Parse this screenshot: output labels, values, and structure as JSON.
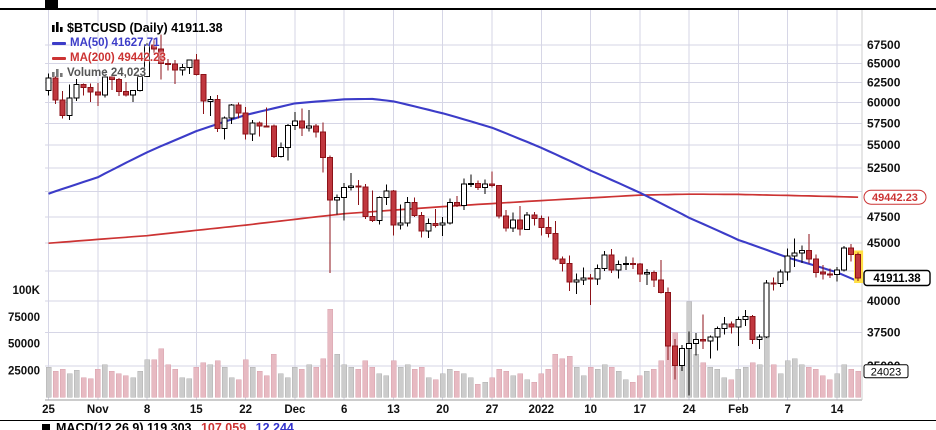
{
  "legend": {
    "title": "$BTCUSD (Daily) 41911.38",
    "ma50": "MA(50) 41627.71",
    "ma200": "MA(200) 49442.23",
    "volume": "Volume 24,023"
  },
  "footer": {
    "label": "MACD(12,26,9) 119.303,",
    "signal": "107.059,",
    "hist": "12.244"
  },
  "colors": {
    "grid": "#d6d6e6",
    "axis_line": "#999999",
    "axis_text": "#111111",
    "ma50": "#3c3cc8",
    "ma200": "#cc3333",
    "candle_down_fill": "#c0373e",
    "candle_down_stroke": "#8c1218",
    "candle_up_fill": "#ffffff",
    "candle_up_stroke": "#000000",
    "vol_down_fill": "#e7bac2",
    "vol_down_stroke": "#d8a2ad",
    "vol_up_fill": "#cccccc",
    "vol_up_stroke": "#b0b0b0",
    "last_highlight": "#ffdf45",
    "badge_last": "#000000"
  },
  "chart_data": {
    "type": "candlestick",
    "symbol": "$BTCUSD",
    "timeframe": "Daily",
    "title": "$BTCUSD (Daily)",
    "last_price": 41911.38,
    "ma50_value": 41627.71,
    "ma200_value": 49442.23,
    "last_volume": 24023,
    "scale": "log",
    "legend_position": "top-left",
    "price_axis": {
      "labels": [
        67500,
        65000,
        62500,
        60000,
        57500,
        55000,
        52500,
        47500,
        45000,
        40000,
        37500,
        35000
      ],
      "gridlines": [
        67500,
        65000,
        62500,
        60000,
        57500,
        55000,
        52500,
        50000,
        47500,
        45000,
        42500,
        40000,
        37500,
        35000
      ],
      "visible_range": [
        33000,
        69000
      ]
    },
    "volume_axis": {
      "labels": [
        [
          "100K",
          100000
        ],
        [
          "75000",
          75000
        ],
        [
          "50000",
          50000
        ],
        [
          "25000",
          25000
        ]
      ],
      "max": 110000
    },
    "x_ticks": [
      [
        "25",
        0
      ],
      [
        "Nov",
        7
      ],
      [
        "8",
        14
      ],
      [
        "15",
        21
      ],
      [
        "22",
        28
      ],
      [
        "Dec",
        35
      ],
      [
        "6",
        42
      ],
      [
        "13",
        49
      ],
      [
        "20",
        56
      ],
      [
        "27",
        63
      ],
      [
        "2022",
        70
      ],
      [
        "10",
        77
      ],
      [
        "17",
        84
      ],
      [
        "24",
        91
      ],
      [
        "Feb",
        98
      ],
      [
        "7",
        105
      ],
      [
        "14",
        112
      ]
    ],
    "bold_ticks": [
      "Nov",
      "Dec",
      "2022",
      "Feb"
    ],
    "candles": [
      [
        61500,
        63700,
        60900,
        63078,
        28000
      ],
      [
        63078,
        63300,
        59850,
        60328,
        24000
      ],
      [
        60328,
        61450,
        58100,
        58413,
        26000
      ],
      [
        58413,
        62250,
        57900,
        60575,
        22000
      ],
      [
        60575,
        62980,
        60200,
        62253,
        25000
      ],
      [
        62253,
        62360,
        60850,
        61859,
        18000
      ],
      [
        61859,
        62400,
        60050,
        61320,
        17000
      ],
      [
        61320,
        62450,
        59600,
        60949,
        26000
      ],
      [
        60949,
        64270,
        60650,
        63219,
        30000
      ],
      [
        63219,
        63550,
        61550,
        62896,
        24000
      ],
      [
        62896,
        63100,
        60800,
        61395,
        22000
      ],
      [
        61395,
        62550,
        60750,
        60937,
        20000
      ],
      [
        60937,
        61560,
        60100,
        61470,
        18000
      ],
      [
        61470,
        63290,
        61350,
        63273,
        24000
      ],
      [
        63273,
        67790,
        63270,
        67528,
        35000
      ],
      [
        67528,
        68500,
        66350,
        66947,
        35000
      ],
      [
        66947,
        68990,
        62900,
        64995,
        45000
      ],
      [
        64995,
        65590,
        64100,
        64949,
        30000
      ],
      [
        64949,
        65450,
        62300,
        64155,
        26000
      ],
      [
        64155,
        64900,
        63400,
        64469,
        18000
      ],
      [
        64469,
        65500,
        63600,
        65466,
        17000
      ],
      [
        65466,
        66280,
        63400,
        63557,
        28000
      ],
      [
        63557,
        63600,
        58600,
        60161,
        32000
      ],
      [
        60161,
        60800,
        58400,
        60368,
        30000
      ],
      [
        60368,
        60950,
        56500,
        56891,
        34000
      ],
      [
        56891,
        58300,
        55650,
        58119,
        28000
      ],
      [
        58119,
        59850,
        57450,
        59697,
        18000
      ],
      [
        59697,
        60000,
        58050,
        58730,
        16000
      ],
      [
        58730,
        59450,
        55650,
        56289,
        35000
      ],
      [
        56289,
        57880,
        55450,
        57569,
        28000
      ],
      [
        57569,
        57750,
        55950,
        57187,
        24000
      ],
      [
        57187,
        59400,
        57000,
        57165,
        20000
      ],
      [
        57165,
        57350,
        53550,
        53726,
        40000
      ],
      [
        53726,
        55300,
        53650,
        54721,
        22000
      ],
      [
        54721,
        57450,
        53300,
        57274,
        18000
      ],
      [
        57274,
        58850,
        56750,
        57776,
        28000
      ],
      [
        57776,
        59250,
        56050,
        56950,
        26000
      ],
      [
        56950,
        59100,
        56550,
        57184,
        30000
      ],
      [
        57184,
        57400,
        55850,
        56508,
        28000
      ],
      [
        56508,
        57600,
        52000,
        53601,
        36000
      ],
      [
        53601,
        53860,
        42330,
        49152,
        82000
      ],
      [
        49152,
        49700,
        47700,
        49396,
        40000
      ],
      [
        49396,
        50890,
        47150,
        50441,
        30000
      ],
      [
        50441,
        51950,
        50100,
        50588,
        28000
      ],
      [
        50588,
        51200,
        48650,
        50471,
        26000
      ],
      [
        50471,
        50800,
        47300,
        47545,
        34000
      ],
      [
        47545,
        50100,
        47000,
        47140,
        28000
      ],
      [
        47140,
        49500,
        46750,
        49389,
        22000
      ],
      [
        49389,
        50750,
        48650,
        50053,
        20000
      ],
      [
        50053,
        50200,
        45700,
        46702,
        34000
      ],
      [
        46702,
        48700,
        46300,
        46880,
        28000
      ],
      [
        46880,
        49450,
        46550,
        48896,
        30000
      ],
      [
        48896,
        49400,
        47500,
        47632,
        26000
      ],
      [
        47632,
        47950,
        45550,
        46131,
        28000
      ],
      [
        46131,
        47350,
        45500,
        46834,
        18000
      ],
      [
        46834,
        48250,
        46450,
        46681,
        16000
      ],
      [
        46681,
        47500,
        45650,
        46914,
        22000
      ],
      [
        46914,
        49300,
        46750,
        48889,
        26000
      ],
      [
        48889,
        49550,
        48450,
        48588,
        24000
      ],
      [
        48588,
        51350,
        48150,
        50784,
        22000
      ],
      [
        50784,
        51800,
        50500,
        50822,
        18000
      ],
      [
        50822,
        51150,
        50200,
        50429,
        12000
      ],
      [
        50429,
        51250,
        49750,
        50809,
        14000
      ],
      [
        50809,
        52100,
        50450,
        50640,
        18000
      ],
      [
        50640,
        50700,
        47350,
        47588,
        26000
      ],
      [
        47588,
        48150,
        46100,
        46444,
        24000
      ],
      [
        46444,
        47900,
        46050,
        47178,
        20000
      ],
      [
        47178,
        48550,
        45700,
        46306,
        22000
      ],
      [
        46306,
        47950,
        46250,
        47687,
        16000
      ],
      [
        47687,
        47990,
        46650,
        47345,
        14000
      ],
      [
        47345,
        47600,
        45700,
        46458,
        22000
      ],
      [
        46458,
        47550,
        45550,
        45897,
        26000
      ],
      [
        45897,
        47070,
        43450,
        43569,
        40000
      ],
      [
        43569,
        43800,
        42450,
        43160,
        36000
      ],
      [
        43160,
        43900,
        40800,
        41557,
        38000
      ],
      [
        41557,
        42300,
        40550,
        41733,
        28000
      ],
      [
        41733,
        42800,
        41300,
        41911,
        20000
      ],
      [
        41911,
        42250,
        39650,
        41821,
        28000
      ],
      [
        41821,
        43100,
        41300,
        42735,
        26000
      ],
      [
        42735,
        44300,
        42500,
        43949,
        30000
      ],
      [
        43949,
        44450,
        42350,
        42591,
        28000
      ],
      [
        42591,
        43450,
        41850,
        43099,
        24000
      ],
      [
        43099,
        43800,
        42600,
        43177,
        16000
      ],
      [
        43177,
        43700,
        42700,
        43113,
        14000
      ],
      [
        43113,
        43200,
        41550,
        42250,
        20000
      ],
      [
        42250,
        42700,
        41300,
        42375,
        24000
      ],
      [
        42375,
        42550,
        41150,
        41744,
        26000
      ],
      [
        41744,
        43500,
        40600,
        40680,
        34000
      ],
      [
        40680,
        41100,
        35450,
        36457,
        75000
      ],
      [
        36457,
        36980,
        34050,
        35030,
        60000
      ],
      [
        35030,
        36550,
        34650,
        36276,
        36000
      ],
      [
        36276,
        37550,
        32950,
        36654,
        89000
      ],
      [
        36654,
        37450,
        35750,
        36954,
        40000
      ],
      [
        36954,
        38900,
        36250,
        36852,
        32000
      ],
      [
        36852,
        37250,
        35550,
        37138,
        28000
      ],
      [
        37138,
        37950,
        36150,
        37784,
        26000
      ],
      [
        37784,
        38700,
        37350,
        38138,
        18000
      ],
      [
        38138,
        38350,
        37400,
        37917,
        16000
      ],
      [
        37917,
        38750,
        36450,
        38483,
        26000
      ],
      [
        38483,
        39250,
        38000,
        38743,
        28000
      ],
      [
        38743,
        38850,
        36600,
        36945,
        32000
      ],
      [
        36945,
        37350,
        36250,
        37149,
        30000
      ],
      [
        37149,
        41750,
        37050,
        41501,
        55000
      ],
      [
        41501,
        41950,
        40850,
        41441,
        30000
      ],
      [
        41441,
        42650,
        41150,
        42412,
        22000
      ],
      [
        42412,
        44500,
        41700,
        43840,
        34000
      ],
      [
        43840,
        45450,
        42850,
        44096,
        36000
      ],
      [
        44096,
        44800,
        43200,
        44347,
        30000
      ],
      [
        44347,
        45850,
        43150,
        43565,
        28000
      ],
      [
        43565,
        43950,
        41950,
        42407,
        26000
      ],
      [
        42407,
        43050,
        41800,
        42244,
        20000
      ],
      [
        42244,
        42750,
        41900,
        42197,
        16000
      ],
      [
        42197,
        42850,
        41600,
        42586,
        22000
      ],
      [
        42586,
        44750,
        42450,
        44578,
        30000
      ],
      [
        44578,
        44950,
        43350,
        43961,
        26000
      ],
      [
        43961,
        44150,
        41650,
        41911.38,
        24023
      ]
    ],
    "ma50_points": [
      [
        0,
        49800
      ],
      [
        7,
        51500
      ],
      [
        14,
        54200
      ],
      [
        21,
        56600
      ],
      [
        28,
        58500
      ],
      [
        35,
        59900
      ],
      [
        42,
        60400
      ],
      [
        46,
        60450
      ],
      [
        49,
        60150
      ],
      [
        56,
        58700
      ],
      [
        63,
        57000
      ],
      [
        70,
        54700
      ],
      [
        77,
        52200
      ],
      [
        84,
        49900
      ],
      [
        91,
        47400
      ],
      [
        98,
        45300
      ],
      [
        105,
        43700
      ],
      [
        112,
        42400
      ],
      [
        115,
        41628
      ]
    ],
    "ma200_points": [
      [
        0,
        45000
      ],
      [
        14,
        45700
      ],
      [
        28,
        46700
      ],
      [
        42,
        47800
      ],
      [
        56,
        48500
      ],
      [
        70,
        49100
      ],
      [
        84,
        49650
      ],
      [
        91,
        49750
      ],
      [
        98,
        49720
      ],
      [
        105,
        49620
      ],
      [
        112,
        49500
      ],
      [
        115,
        49442
      ]
    ],
    "badges": [
      {
        "text": "49442.23",
        "price": 49442.23,
        "style": "ma200"
      },
      {
        "text": "41911.38",
        "price": 41911.38,
        "style": "last"
      },
      {
        "text": "24023",
        "volume": 24023,
        "style": "vol"
      }
    ],
    "last_candle_highlighted": true
  }
}
